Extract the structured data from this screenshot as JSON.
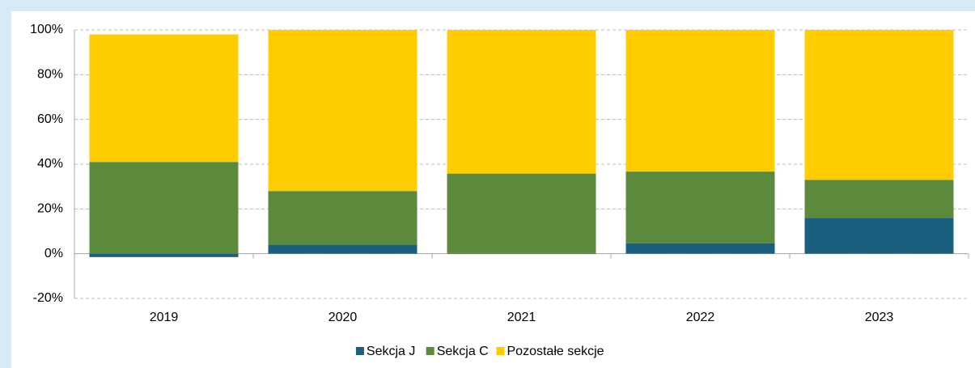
{
  "chart_data": {
    "type": "stacked_bar",
    "categories": [
      "2019",
      "2020",
      "2021",
      "2022",
      "2023"
    ],
    "series": [
      {
        "name": "Sekcja J",
        "color": "#1a5e80",
        "values": [
          -1.5,
          4,
          0.3,
          4.7,
          16
        ]
      },
      {
        "name": "Sekcja C",
        "color": "#5b8a3c",
        "values": [
          41,
          24,
          35.5,
          32,
          17
        ]
      },
      {
        "name": "Pozostałe sekcje",
        "color": "#ffcc00",
        "values": [
          57,
          72,
          64.2,
          63.3,
          67
        ]
      }
    ],
    "ylim": [
      -20,
      100
    ],
    "yticks": [
      {
        "value": -20,
        "label": "-20%"
      },
      {
        "value": 0,
        "label": "0%"
      },
      {
        "value": 20,
        "label": "20%"
      },
      {
        "value": 40,
        "label": "40%"
      },
      {
        "value": 60,
        "label": "60%"
      },
      {
        "value": 80,
        "label": "80%"
      },
      {
        "value": 100,
        "label": "100%"
      }
    ],
    "grid": true,
    "legend": "bottom"
  }
}
